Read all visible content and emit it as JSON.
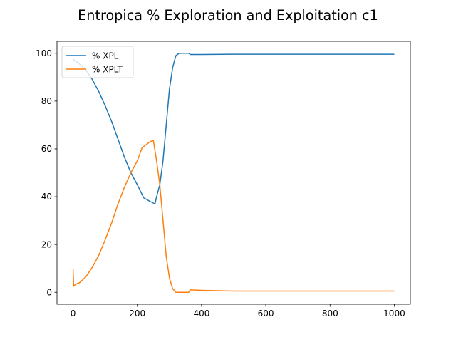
{
  "chart_data": {
    "type": "line",
    "title": "Entropica % Exploration and Exploitation c1",
    "xlabel": "",
    "ylabel": "",
    "xlim": [
      -50,
      1050
    ],
    "ylim": [
      -5,
      105
    ],
    "xticks": [
      0,
      200,
      400,
      600,
      800,
      1000
    ],
    "yticks": [
      0,
      20,
      40,
      60,
      80,
      100
    ],
    "grid": false,
    "legend": "upper-left",
    "series": [
      {
        "name": "% XPL",
        "color": "#1f77b4",
        "x": [
          0,
          3,
          10,
          20,
          40,
          60,
          80,
          100,
          120,
          140,
          160,
          180,
          200,
          220,
          240,
          255,
          260,
          270,
          280,
          290,
          300,
          310,
          320,
          330,
          340,
          360,
          365,
          400,
          500,
          600,
          700,
          800,
          900,
          1000
        ],
        "y": [
          97.5,
          97,
          96.5,
          95.5,
          93,
          89,
          84,
          78,
          71.5,
          64,
          56.5,
          50,
          45,
          39.5,
          38,
          37,
          40,
          45,
          55,
          70,
          85,
          94,
          99,
          100,
          100,
          100,
          99.5,
          99.5,
          99.6,
          99.6,
          99.6,
          99.6,
          99.6,
          99.6
        ]
      },
      {
        "name": "% XPLT",
        "color": "#ff7f0e",
        "x": [
          0,
          2,
          5,
          10,
          20,
          40,
          60,
          80,
          100,
          120,
          140,
          160,
          180,
          200,
          215,
          225,
          240,
          250,
          260,
          270,
          280,
          290,
          300,
          310,
          320,
          330,
          335,
          360,
          365,
          400,
          500,
          600,
          700,
          800,
          900,
          1000
        ],
        "y": [
          9.5,
          2.5,
          3,
          3.5,
          4,
          6.5,
          10.5,
          15.5,
          22,
          29,
          37,
          44,
          50,
          55,
          60.5,
          61.5,
          63,
          63.5,
          55,
          45,
          30,
          15,
          6,
          1.5,
          0,
          0,
          0,
          0,
          1,
          0.8,
          0.5,
          0.5,
          0.5,
          0.5,
          0.5,
          0.5
        ]
      }
    ]
  }
}
